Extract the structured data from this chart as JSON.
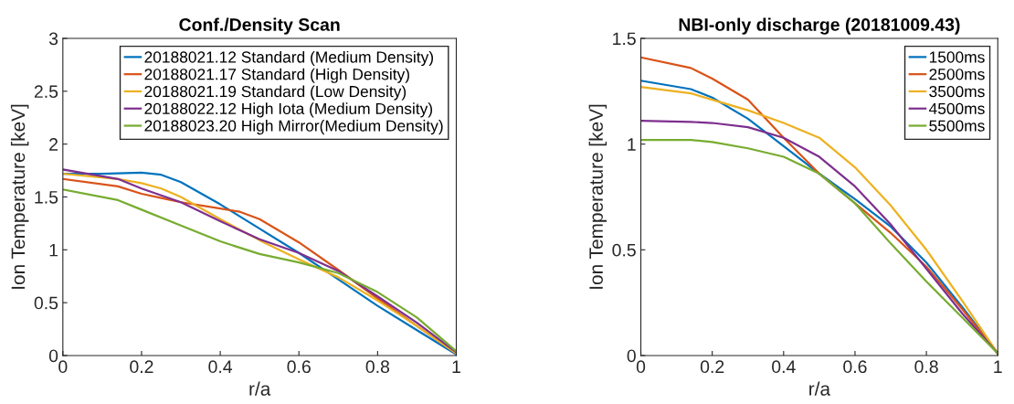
{
  "chart_data": [
    {
      "type": "line",
      "title": "Conf./Density Scan",
      "xlabel": "r/a",
      "ylabel": "Ion Temperature [keV]",
      "xlim": [
        0,
        1
      ],
      "ylim": [
        0,
        3
      ],
      "xticks": [
        0,
        0.2,
        0.4,
        0.6,
        0.8,
        1
      ],
      "yticks": [
        0,
        0.5,
        1,
        1.5,
        2,
        2.5,
        3
      ],
      "grid": false,
      "legend": "top right",
      "series": [
        {
          "name": "20188021.12 Standard (Medium Density)",
          "color": "#0072bd",
          "x": [
            0,
            0.1,
            0.2,
            0.25,
            0.3,
            0.4,
            0.5,
            0.6,
            0.7,
            0.8,
            0.9,
            1
          ],
          "values": [
            1.72,
            1.72,
            1.73,
            1.71,
            1.64,
            1.43,
            1.2,
            0.97,
            0.72,
            0.47,
            0.24,
            0.01
          ]
        },
        {
          "name": "20188021.17 Standard (High Density)",
          "color": "#d95319",
          "x": [
            0,
            0.14,
            0.2,
            0.25,
            0.3,
            0.4,
            0.45,
            0.5,
            0.6,
            0.7,
            0.8,
            0.9,
            1
          ],
          "values": [
            1.67,
            1.6,
            1.53,
            1.49,
            1.45,
            1.39,
            1.36,
            1.29,
            1.07,
            0.81,
            0.54,
            0.28,
            0.02
          ]
        },
        {
          "name": "20188021.19 Standard (Low Density)",
          "color": "#edb120",
          "x": [
            0,
            0.14,
            0.2,
            0.25,
            0.3,
            0.4,
            0.5,
            0.6,
            0.7,
            0.8,
            0.9,
            1
          ],
          "values": [
            1.72,
            1.67,
            1.63,
            1.58,
            1.5,
            1.29,
            1.09,
            0.91,
            0.74,
            0.52,
            0.28,
            0.02
          ]
        },
        {
          "name": "20188022.12 High Iota (Medium Density)",
          "color": "#7e2f8e",
          "x": [
            0,
            0.14,
            0.2,
            0.3,
            0.4,
            0.5,
            0.6,
            0.7,
            0.8,
            0.9,
            1
          ],
          "values": [
            1.76,
            1.67,
            1.58,
            1.45,
            1.27,
            1.1,
            0.97,
            0.8,
            0.56,
            0.31,
            0.03
          ]
        },
        {
          "name": "20188023.20 High Mirror(Medium Density)",
          "color": "#77ac30",
          "x": [
            0,
            0.14,
            0.2,
            0.3,
            0.4,
            0.5,
            0.6,
            0.7,
            0.8,
            0.9,
            1
          ],
          "values": [
            1.57,
            1.47,
            1.38,
            1.23,
            1.08,
            0.96,
            0.88,
            0.78,
            0.6,
            0.36,
            0.04
          ]
        }
      ]
    },
    {
      "type": "line",
      "title": "NBI-only discharge (20181009.43)",
      "xlabel": "r/a",
      "ylabel": "Ion Temperature [keV]",
      "xlim": [
        0,
        1
      ],
      "ylim": [
        0,
        1.5
      ],
      "xticks": [
        0,
        0.2,
        0.4,
        0.6,
        0.8,
        1
      ],
      "yticks": [
        0,
        0.5,
        1,
        1.5
      ],
      "grid": false,
      "legend": "top right",
      "series": [
        {
          "name": "1500ms",
          "color": "#0072bd",
          "x": [
            0,
            0.14,
            0.2,
            0.3,
            0.4,
            0.5,
            0.6,
            0.7,
            0.8,
            0.9,
            1
          ],
          "values": [
            1.3,
            1.26,
            1.22,
            1.12,
            0.99,
            0.86,
            0.74,
            0.61,
            0.44,
            0.23,
            0.01
          ]
        },
        {
          "name": "2500ms",
          "color": "#d95319",
          "x": [
            0,
            0.14,
            0.2,
            0.3,
            0.4,
            0.5,
            0.6,
            0.7,
            0.8,
            0.9,
            1
          ],
          "values": [
            1.41,
            1.36,
            1.31,
            1.21,
            1.03,
            0.86,
            0.72,
            0.58,
            0.42,
            0.22,
            0.01
          ]
        },
        {
          "name": "3500ms",
          "color": "#edb120",
          "x": [
            0,
            0.14,
            0.2,
            0.3,
            0.4,
            0.5,
            0.6,
            0.7,
            0.8,
            0.9,
            1
          ],
          "values": [
            1.27,
            1.24,
            1.21,
            1.16,
            1.1,
            1.03,
            0.89,
            0.71,
            0.5,
            0.26,
            0.01
          ]
        },
        {
          "name": "4500ms",
          "color": "#7e2f8e",
          "x": [
            0,
            0.14,
            0.2,
            0.3,
            0.4,
            0.5,
            0.6,
            0.7,
            0.8,
            0.9,
            1
          ],
          "values": [
            1.11,
            1.105,
            1.1,
            1.08,
            1.03,
            0.94,
            0.8,
            0.62,
            0.41,
            0.2,
            0.01
          ]
        },
        {
          "name": "5500ms",
          "color": "#77ac30",
          "x": [
            0,
            0.14,
            0.2,
            0.3,
            0.4,
            0.5,
            0.6,
            0.7,
            0.8,
            0.9,
            1
          ],
          "values": [
            1.02,
            1.02,
            1.01,
            0.98,
            0.94,
            0.86,
            0.72,
            0.53,
            0.35,
            0.18,
            0.01
          ]
        }
      ]
    }
  ]
}
